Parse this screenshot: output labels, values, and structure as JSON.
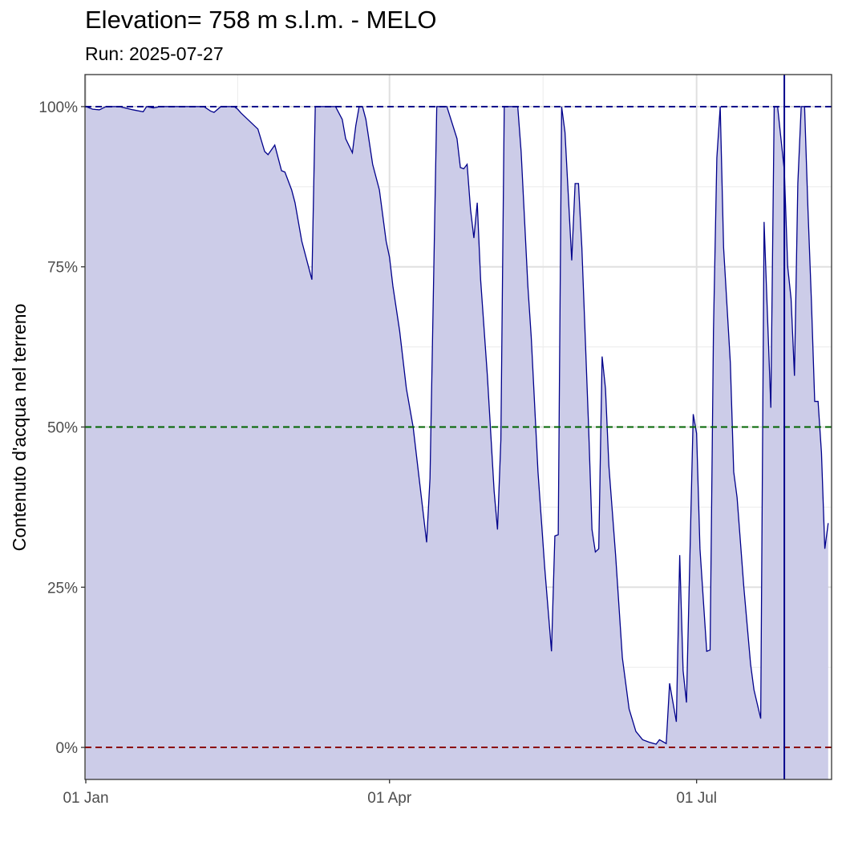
{
  "chart_data": {
    "type": "area",
    "title": "Elevation= 758 m s.l.m. - MELO",
    "subtitle": "Run: 2025-07-27",
    "y_label": "Contenuto d'acqua nel terreno",
    "x": [
      "01-01",
      "01-03",
      "01-05",
      "01-07",
      "01-11",
      "01-15",
      "01-18",
      "01-19",
      "01-21",
      "01-23",
      "02-05",
      "02-07",
      "02-08",
      "02-10",
      "02-14",
      "02-15",
      "02-16",
      "02-18",
      "02-21",
      "02-23",
      "02-24",
      "02-26",
      "02-28",
      "03-01",
      "03-03",
      "03-04",
      "03-06",
      "03-09",
      "03-10",
      "03-16",
      "03-18",
      "03-19",
      "03-21",
      "03-22",
      "03-23",
      "03-24",
      "03-25",
      "03-27",
      "03-29",
      "03-31",
      "04-01",
      "04-02",
      "04-04",
      "04-06",
      "04-08",
      "04-10",
      "04-12",
      "04-13",
      "04-15",
      "04-18",
      "04-21",
      "04-22",
      "04-23",
      "04-24",
      "04-25",
      "04-26",
      "04-27",
      "04-28",
      "04-30",
      "05-02",
      "05-03",
      "05-04",
      "05-05",
      "05-09",
      "05-10",
      "05-12",
      "05-13",
      "05-15",
      "05-17",
      "05-19",
      "05-20",
      "05-21",
      "05-22",
      "05-23",
      "05-25",
      "05-26",
      "05-27",
      "05-28",
      "05-30",
      "05-31",
      "06-01",
      "06-02",
      "06-03",
      "06-04",
      "06-05",
      "06-07",
      "06-09",
      "06-11",
      "06-13",
      "06-15",
      "06-17",
      "06-19",
      "06-20",
      "06-22",
      "06-23",
      "06-25",
      "06-26",
      "06-27",
      "06-28",
      "06-30",
      "07-01",
      "07-02",
      "07-04",
      "07-05",
      "07-06",
      "07-07",
      "07-08",
      "07-09",
      "07-11",
      "07-12",
      "07-13",
      "07-15",
      "07-17",
      "07-18",
      "07-20",
      "07-21",
      "07-23",
      "07-24",
      "07-25",
      "07-26",
      "07-27",
      "07-28",
      "07-29",
      "07-30",
      "07-31",
      "08-01",
      "08-02",
      "08-03",
      "08-04",
      "08-05",
      "08-06",
      "08-07",
      "08-08",
      "08-09"
    ],
    "series": [
      {
        "line_color": "#00008B",
        "fill_color": "#CCCCE8",
        "values": [
          100,
          99.6,
          99.5,
          100,
          100,
          99.5,
          99.2,
          100,
          99.8,
          100,
          100,
          99.3,
          99.1,
          100,
          100,
          99.6,
          99,
          98,
          96.5,
          93,
          92.5,
          94,
          90,
          89.8,
          87,
          85,
          79,
          73,
          100,
          100,
          98,
          95,
          92.8,
          97,
          100,
          100,
          98,
          91,
          87,
          79,
          76.5,
          72,
          65,
          56,
          50,
          41,
          32,
          42,
          100,
          100,
          95,
          90.5,
          90.3,
          91,
          84,
          79.5,
          85,
          73,
          58,
          40,
          34,
          48,
          100,
          100,
          93,
          72,
          64,
          43,
          28,
          15,
          33,
          33.2,
          100,
          96,
          76,
          88,
          88,
          78,
          50,
          34,
          30.5,
          31,
          61,
          56,
          44,
          30,
          14,
          6,
          2.5,
          1.2,
          0.8,
          0.5,
          1.2,
          0.6,
          10,
          4,
          30,
          12,
          7,
          52,
          49,
          31,
          15,
          15.2,
          65,
          92,
          100,
          78,
          60,
          43,
          39,
          25,
          13,
          9,
          4.5,
          82,
          53,
          100,
          100,
          95,
          90,
          75,
          70,
          58,
          88,
          100,
          100,
          84,
          70,
          54,
          54,
          46,
          31,
          35
        ]
      }
    ],
    "xlim": [
      "01-01",
      "08-10"
    ],
    "xticks": [
      {
        "value": "01-01",
        "label": "01 Jan"
      },
      {
        "value": "04-01",
        "label": "01 Apr"
      },
      {
        "value": "07-01",
        "label": "01 Jul"
      }
    ],
    "ylim": [
      -5,
      105
    ],
    "yticks": [
      {
        "value": 0,
        "label": "0%"
      },
      {
        "value": 25,
        "label": "25%"
      },
      {
        "value": 50,
        "label": "50%"
      },
      {
        "value": 75,
        "label": "75%"
      },
      {
        "value": 100,
        "label": "100%"
      }
    ],
    "hlines": [
      {
        "value": 100,
        "color": "#00008B"
      },
      {
        "value": 50,
        "color": "#006400"
      },
      {
        "value": 0,
        "color": "#8B0000"
      }
    ],
    "vline": {
      "x": "07-27",
      "color": "#00008B"
    },
    "grid": true
  }
}
